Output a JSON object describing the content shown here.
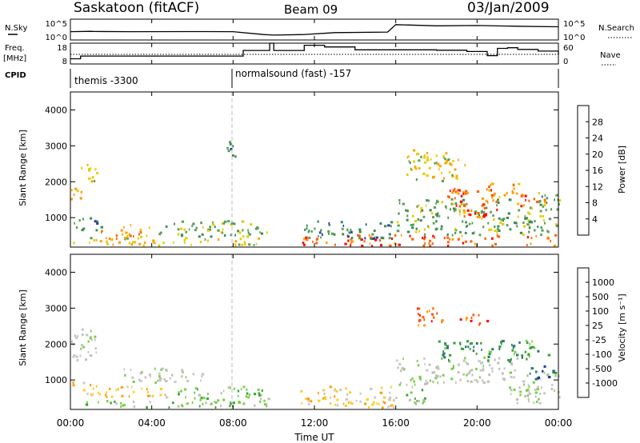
{
  "header": {
    "station": "Saskatoon (fitACF)",
    "beam": "Beam 09",
    "date": "03/Jan/2009"
  },
  "side_labels": {
    "nsky": "N.Sky",
    "freq": "Freq.",
    "freq_unit": "[MHz]",
    "cpid": "CPID",
    "nsearch": "N.Search",
    "nave": "Nave"
  },
  "cpid_labels": [
    "themis -3300",
    "normalsound (fast) -157"
  ],
  "colors": {
    "power": [
      "#0000ff",
      "#2e3fa0",
      "#3e8a52",
      "#5aa05a",
      "#e8cc00",
      "#ffa000",
      "#ff6000",
      "#ff0000"
    ],
    "velocity": [
      "#ff0000",
      "#ff5a00",
      "#ff9a00",
      "#ffcc22",
      "#c8c8c8",
      "#c0c0b8",
      "#7ad04a",
      "#3aa03a",
      "#2a7a6a",
      "#1c3ca0",
      "#0000ff"
    ]
  },
  "chart_data": [
    {
      "type": "line",
      "panel": "nsky-nsearch",
      "x": [
        0,
        1,
        1.2,
        3,
        6,
        8,
        9.5,
        10,
        11.5,
        13,
        15.6,
        16,
        18,
        20,
        22,
        24
      ],
      "series": [
        {
          "values": [
            100,
            120,
            110,
            100,
            105,
            100,
            20,
            15,
            20,
            60,
            80,
            5000,
            2500,
            3000,
            2000,
            1500
          ]
        }
      ],
      "ytick_labels_left": [
        "10^5",
        "10^0"
      ],
      "ytick_labels_right": [
        "10^5",
        "10^0"
      ],
      "ylim": [
        1,
        100000
      ],
      "yscale": "log"
    },
    {
      "type": "line",
      "panel": "freq-nave",
      "x": [
        0,
        0.5,
        1,
        3,
        5,
        7,
        8,
        8.5,
        9.5,
        9.8,
        10,
        11.5,
        12.5,
        14,
        16,
        18,
        19.5,
        20.5,
        21,
        21.5,
        22,
        23,
        24
      ],
      "series": [
        {
          "values": [
            10.5,
            11.8,
            11.8,
            11.8,
            11.8,
            11.8,
            11.8,
            14.5,
            14.5,
            18,
            14.5,
            17,
            16.2,
            14.8,
            14.8,
            14.6,
            14.0,
            12.0,
            15.5,
            15.8,
            15.0,
            14.2,
            12.5
          ]
        }
      ],
      "ytick_labels_left": [
        "18",
        "8"
      ],
      "ytick_labels_right": [
        "60",
        "0"
      ],
      "reference_line": "dotted",
      "ylim": [
        8,
        18
      ]
    },
    {
      "type": "heatmap",
      "panel": "power",
      "xlabel": "",
      "ylabel": "Slant Range [km]",
      "x_range_hours": [
        0,
        24
      ],
      "ylim": [
        180,
        4500
      ],
      "yticks": [
        1000,
        2000,
        3000,
        4000
      ],
      "colorbar_label": "Power [dB]",
      "colorbar_ticks": [
        "4",
        "8",
        "12",
        "16",
        "20",
        "24",
        "28"
      ],
      "data_gap_hours": [
        9.7,
        11.3
      ],
      "regions": [
        {
          "t0": 0.0,
          "t1": 0.5,
          "r0": 1500,
          "r1": 1800,
          "level": 5
        },
        {
          "t0": 0.5,
          "t1": 1.3,
          "r0": 1900,
          "r1": 2500,
          "level": 4
        },
        {
          "t0": 0.0,
          "t1": 1.5,
          "r0": 600,
          "r1": 1000,
          "level": 2
        },
        {
          "t0": 0.0,
          "t1": 9.7,
          "r0": 200,
          "r1": 450,
          "level": 4
        },
        {
          "t0": 1.5,
          "t1": 3.5,
          "r0": 400,
          "r1": 800,
          "level": 5
        },
        {
          "t0": 3.5,
          "t1": 9.7,
          "r0": 450,
          "r1": 900,
          "level": 3
        },
        {
          "t0": 7.6,
          "t1": 8.1,
          "r0": 2600,
          "r1": 3100,
          "level": 2
        },
        {
          "t0": 11.3,
          "t1": 24.0,
          "r0": 200,
          "r1": 500,
          "level": 6
        },
        {
          "t0": 11.3,
          "t1": 16.0,
          "r0": 400,
          "r1": 900,
          "level": 2
        },
        {
          "t0": 16.0,
          "t1": 24.0,
          "r0": 500,
          "r1": 1500,
          "level": 3
        },
        {
          "t0": 16.5,
          "t1": 19.0,
          "r0": 2000,
          "r1": 2900,
          "level": 4
        },
        {
          "t0": 17.5,
          "t1": 19.5,
          "r0": 2400,
          "r1": 2600,
          "level": 5
        },
        {
          "t0": 18.5,
          "t1": 21.0,
          "r0": 1000,
          "r1": 1800,
          "level": 6
        },
        {
          "t0": 19.5,
          "t1": 20.5,
          "r0": 1000,
          "r1": 1200,
          "level": 7
        },
        {
          "t0": 20.5,
          "t1": 22.0,
          "r0": 1400,
          "r1": 2000,
          "level": 5
        },
        {
          "t0": 22.0,
          "t1": 23.5,
          "r0": 1300,
          "r1": 1700,
          "level": 6
        },
        {
          "t0": 23.0,
          "t1": 24.0,
          "r0": 1200,
          "r1": 1700,
          "level": 3
        }
      ]
    },
    {
      "type": "heatmap",
      "panel": "velocity",
      "xlabel": "Time UT",
      "ylabel": "Slant Range [km]",
      "x_range_hours": [
        0,
        24
      ],
      "xtick_labels": [
        "00:00",
        "04:00",
        "08:00",
        "12:00",
        "16:00",
        "20:00",
        "00:00"
      ],
      "ylim": [
        180,
        4500
      ],
      "yticks": [
        1000,
        2000,
        3000,
        4000
      ],
      "colorbar_label": "Velocity [m s⁻¹]",
      "colorbar_ticks": [
        "-1000",
        "-500",
        "-100",
        "-25",
        "25",
        "100",
        "500",
        "1000"
      ],
      "data_gap_hours": [
        9.7,
        11.3
      ],
      "regions": [
        {
          "t0": 0.0,
          "t1": 1.3,
          "r0": 1400,
          "r1": 2400,
          "level": 5
        },
        {
          "t0": 0.0,
          "t1": 1.5,
          "r0": 550,
          "r1": 950,
          "level": 3
        },
        {
          "t0": 1.5,
          "t1": 5.0,
          "r0": 500,
          "r1": 800,
          "level": 3
        },
        {
          "t0": 5.0,
          "t1": 9.7,
          "r0": 400,
          "r1": 800,
          "level": 6
        },
        {
          "t0": 0.0,
          "t1": 9.7,
          "r0": 200,
          "r1": 400,
          "level": 6
        },
        {
          "t0": 2.0,
          "t1": 6.5,
          "r0": 900,
          "r1": 1300,
          "level": 5
        },
        {
          "t0": 11.3,
          "t1": 16.0,
          "r0": 200,
          "r1": 800,
          "level": 3
        },
        {
          "t0": 16.0,
          "t1": 17.5,
          "r0": 300,
          "r1": 900,
          "level": 6
        },
        {
          "t0": 16.0,
          "t1": 22.0,
          "r0": 900,
          "r1": 1600,
          "level": 5
        },
        {
          "t0": 18.0,
          "t1": 23.5,
          "r0": 1500,
          "r1": 2100,
          "level": 7
        },
        {
          "t0": 17.0,
          "t1": 18.5,
          "r0": 2400,
          "r1": 3000,
          "level": 1
        },
        {
          "t0": 19.0,
          "t1": 20.5,
          "r0": 2500,
          "r1": 2800,
          "level": 1
        },
        {
          "t0": 21.5,
          "t1": 24.0,
          "r0": 300,
          "r1": 1200,
          "level": 5
        },
        {
          "t0": 22.5,
          "t1": 24.0,
          "r0": 1000,
          "r1": 1400,
          "level": 8
        }
      ]
    }
  ]
}
